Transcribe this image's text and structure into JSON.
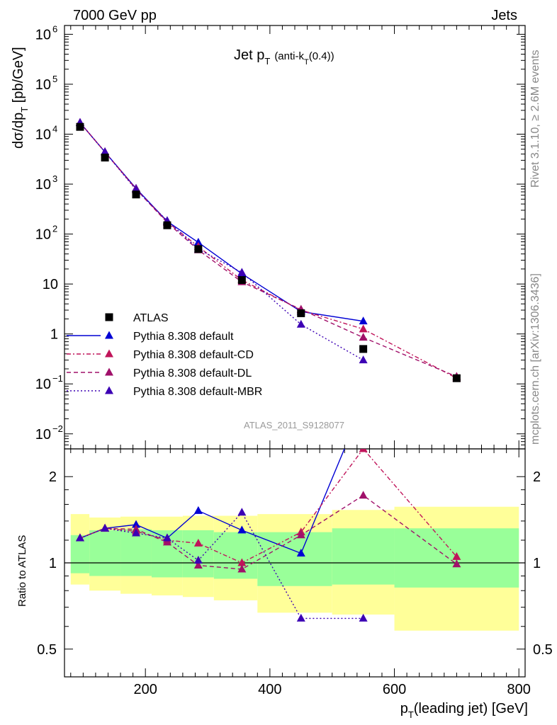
{
  "header": {
    "left": "7000 GeV pp",
    "right": "Jets"
  },
  "side_labels": {
    "rivet": "Rivet 3.1.10, ≥ 2.6M events",
    "mcplots": "mcplots.cern.ch [arXiv:1306.3436]"
  },
  "watermark": "ATLAS_2011_S9128077",
  "chart_data": [
    {
      "type": "scatter",
      "title_main": "Jet p",
      "title_sub": "T",
      "title_tail": "(anti-k",
      "title_tail_sub": "T",
      "title_tail_end": "(0.4))",
      "ylabel": "dσ/dp",
      "ylabel_sub": "T",
      "ylabel_unit": " [pb/GeV]",
      "yscale": "log",
      "ylim": [
        0.005,
        1500000
      ],
      "xlim": [
        70,
        810
      ],
      "ytick_labels": [
        {
          "value": 0.01,
          "base": "10",
          "exp": "−2"
        },
        {
          "value": 0.1,
          "base": "10",
          "exp": "−1"
        },
        {
          "value": 1,
          "base": "1",
          "exp": ""
        },
        {
          "value": 10,
          "base": "10",
          "exp": ""
        },
        {
          "value": 100,
          "base": "10",
          "exp": "2"
        },
        {
          "value": 1000,
          "base": "10",
          "exp": "3"
        },
        {
          "value": 10000,
          "base": "10",
          "exp": "4"
        },
        {
          "value": 100000,
          "base": "10",
          "exp": "5"
        },
        {
          "value": 1000000,
          "base": "10",
          "exp": "6"
        }
      ],
      "legend_placement": "lower-left",
      "series": [
        {
          "name": "ATLAS",
          "marker": "square",
          "color": "#000000",
          "dash": "none",
          "x": [
            95,
            135,
            185,
            235,
            285,
            355,
            450,
            550,
            700
          ],
          "y": [
            14000,
            3400,
            620,
            150,
            50,
            12,
            2.6,
            0.5,
            0.13
          ]
        },
        {
          "name": "Pythia 8.308 default",
          "marker": "triangle",
          "color": "#0000d4",
          "dash": "solid",
          "x": [
            95,
            135,
            185,
            235,
            285,
            355,
            450,
            550
          ],
          "y": [
            17000,
            4400,
            820,
            180,
            68,
            16,
            2.8,
            1.8
          ]
        },
        {
          "name": "Pythia 8.308 default-CD",
          "marker": "triangle",
          "color": "#c0145a",
          "dash": "6,3,2,3",
          "x": [
            95,
            135,
            185,
            235,
            285,
            355,
            450,
            550,
            700
          ],
          "y": [
            17000,
            4400,
            800,
            175,
            56,
            12,
            3.0,
            1.25,
            0.13
          ]
        },
        {
          "name": "Pythia 8.308 default-DL",
          "marker": "triangle",
          "color": "#a0106a",
          "dash": "6,4",
          "x": [
            95,
            135,
            185,
            235,
            285,
            355,
            450,
            550,
            700
          ],
          "y": [
            17000,
            4400,
            790,
            170,
            48,
            11,
            3.1,
            0.85,
            0.14
          ]
        },
        {
          "name": "Pythia 8.308 default-MBR",
          "marker": "triangle",
          "color": "#3c00b4",
          "dash": "2,3",
          "x": [
            95,
            135,
            185,
            235,
            285,
            355,
            450,
            550
          ],
          "y": [
            17000,
            4400,
            770,
            185,
            50,
            17,
            1.55,
            0.3
          ]
        }
      ]
    },
    {
      "type": "line",
      "ylabel": "Ratio to ATLAS",
      "xlabel": "p",
      "xlabel_sub": "T",
      "xlabel_tail": "(leading jet) [GeV]",
      "yscale": "log",
      "ylim": [
        0.4,
        2.5
      ],
      "xlim": [
        70,
        810
      ],
      "xticks": [
        200,
        400,
        600,
        800
      ],
      "xtick_labels": [
        "200",
        "400",
        "600",
        "800"
      ],
      "ytick_labels": [
        {
          "value": 0.5,
          "label": "0.5"
        },
        {
          "value": 1,
          "label": "1"
        },
        {
          "value": 2,
          "label": "2"
        }
      ],
      "bands": {
        "bins": [
          [
            80,
            110
          ],
          [
            110,
            160
          ],
          [
            160,
            210
          ],
          [
            210,
            260
          ],
          [
            260,
            310
          ],
          [
            310,
            380
          ],
          [
            380,
            500
          ],
          [
            500,
            600
          ],
          [
            600,
            800
          ]
        ],
        "green": {
          "color": "#99ff99",
          "lo": [
            0.92,
            0.9,
            0.9,
            0.89,
            0.89,
            0.88,
            0.83,
            0.84,
            0.82
          ],
          "hi": [
            1.25,
            1.3,
            1.31,
            1.3,
            1.3,
            1.28,
            1.28,
            1.32,
            1.32
          ]
        },
        "yellow": {
          "color": "#ffff99",
          "lo": [
            0.84,
            0.8,
            0.78,
            0.77,
            0.76,
            0.74,
            0.67,
            0.66,
            0.58
          ],
          "hi": [
            1.48,
            1.44,
            1.45,
            1.45,
            1.46,
            1.46,
            1.48,
            1.53,
            1.57
          ]
        }
      },
      "series": [
        {
          "name": "Pythia 8.308 default",
          "color": "#0000d4",
          "dash": "solid",
          "x": [
            95,
            135,
            185,
            235,
            285,
            355,
            450,
            550
          ],
          "y": [
            1.22,
            1.32,
            1.36,
            1.22,
            1.52,
            1.3,
            1.08,
            3.6
          ]
        },
        {
          "name": "Pythia 8.308 default-CD",
          "color": "#c0145a",
          "dash": "6,3,2,3",
          "x": [
            95,
            135,
            185,
            235,
            285,
            355,
            450,
            550,
            700
          ],
          "y": [
            1.22,
            1.32,
            1.29,
            1.2,
            1.17,
            1.0,
            1.28,
            2.5,
            1.05
          ]
        },
        {
          "name": "Pythia 8.308 default-DL",
          "color": "#a0106a",
          "dash": "6,4",
          "x": [
            95,
            135,
            185,
            235,
            285,
            355,
            450,
            550,
            700
          ],
          "y": [
            1.22,
            1.32,
            1.31,
            1.18,
            0.98,
            0.95,
            1.25,
            1.72,
            0.99
          ]
        },
        {
          "name": "Pythia 8.308 default-MBR",
          "color": "#3c00b4",
          "dash": "2,3",
          "x": [
            95,
            135,
            185,
            235,
            285,
            355,
            450,
            550
          ],
          "y": [
            1.22,
            1.32,
            1.27,
            1.22,
            1.02,
            1.5,
            0.64,
            0.64
          ]
        }
      ]
    }
  ]
}
